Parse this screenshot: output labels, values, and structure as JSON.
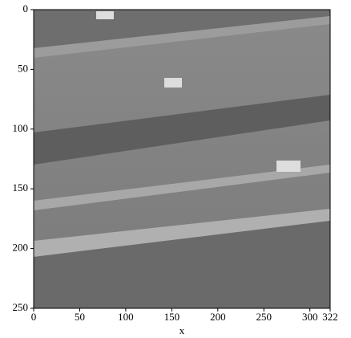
{
  "chart_data": {
    "type": "image",
    "xlabel": "x",
    "xlim": [
      0,
      322
    ],
    "xticks": [
      0,
      50,
      100,
      150,
      200,
      250,
      300,
      322
    ],
    "ylim": [
      0,
      250
    ],
    "yticks": [
      0,
      50,
      100,
      150,
      200,
      250
    ],
    "y_inverted": true
  }
}
